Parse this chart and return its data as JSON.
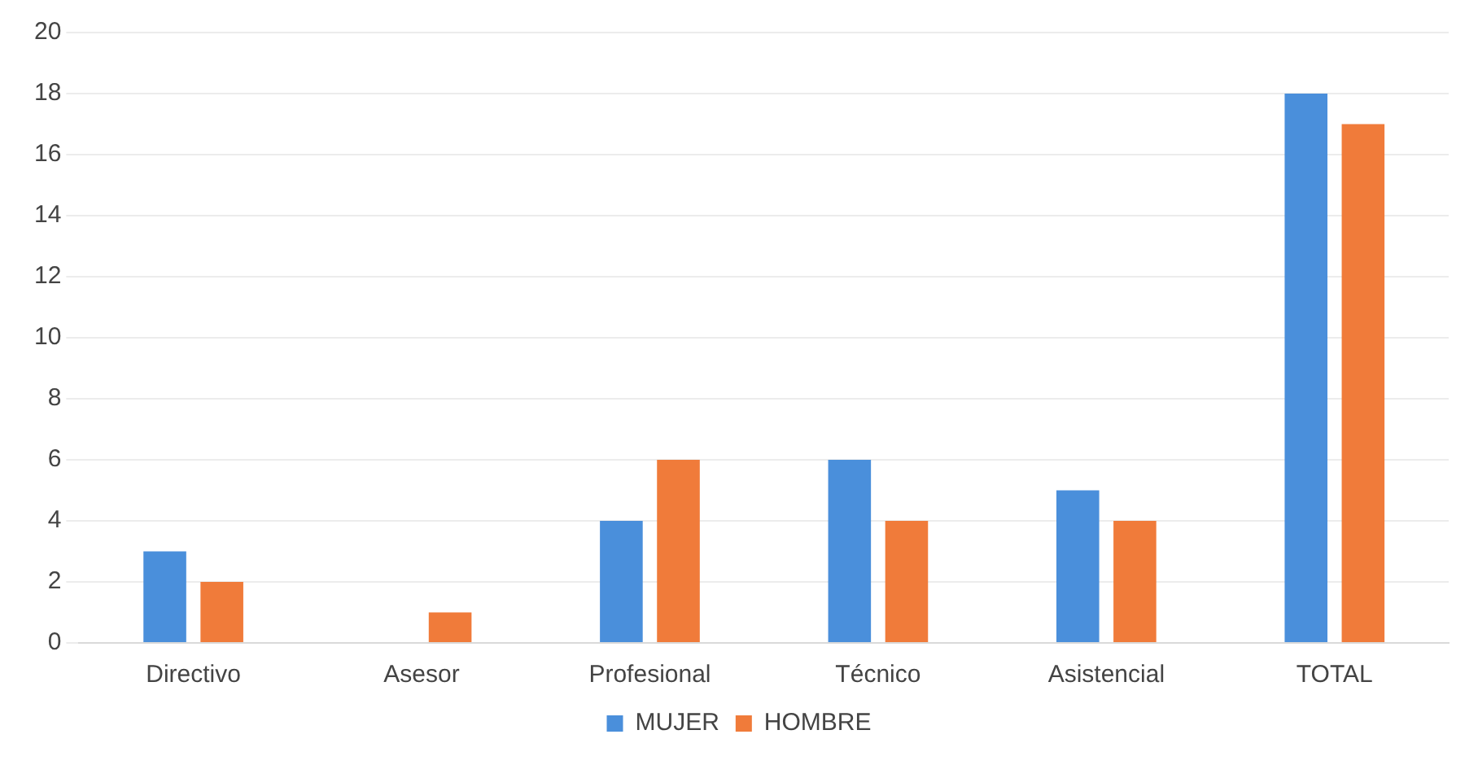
{
  "chart_data": {
    "type": "bar",
    "categories": [
      "Directivo",
      "Asesor",
      "Profesional",
      "Técnico",
      "Asistencial",
      "TOTAL"
    ],
    "series": [
      {
        "name": "MUJER",
        "color": "#4a8fdb",
        "values": [
          3,
          0,
          4,
          6,
          5,
          18
        ]
      },
      {
        "name": "HOMBRE",
        "color": "#f07b3a",
        "values": [
          2,
          1,
          6,
          4,
          4,
          17
        ]
      }
    ],
    "ylim": [
      0,
      20
    ],
    "yticks": [
      0,
      2,
      4,
      6,
      8,
      10,
      12,
      14,
      16,
      18,
      20
    ],
    "grid": "y",
    "legend": "bottom"
  }
}
